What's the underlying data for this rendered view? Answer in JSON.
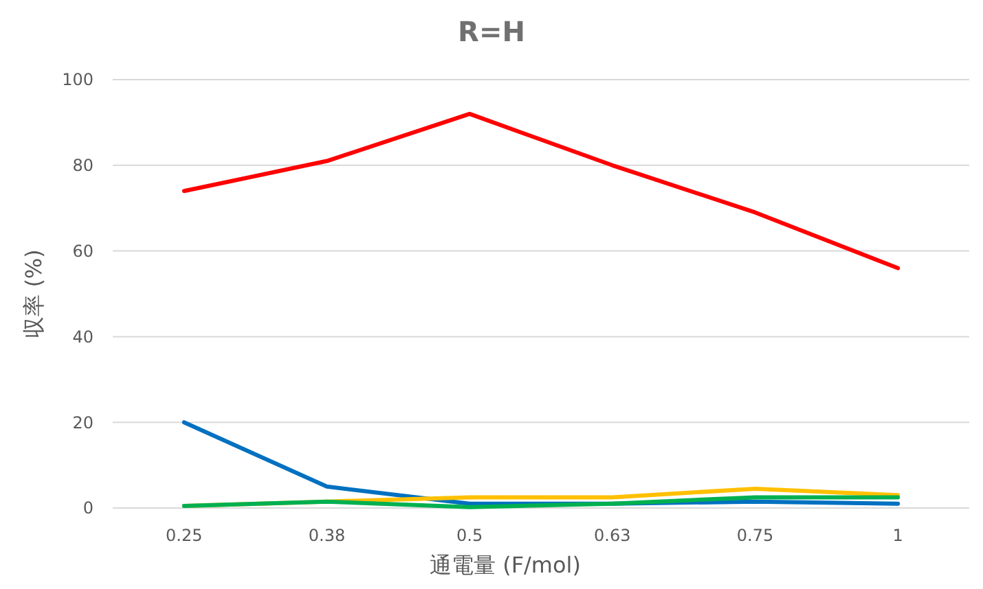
{
  "chart_data": {
    "type": "line",
    "title": "R=H",
    "xlabel": "通電量 (F/mol)",
    "ylabel": "収率 (%)",
    "categories": [
      "0.25",
      "0.38",
      "0.5",
      "0.63",
      "0.75",
      "1"
    ],
    "series": [
      {
        "color": "#ff0000",
        "values": [
          74,
          81,
          92,
          80,
          69,
          56
        ]
      },
      {
        "color": "#0070c0",
        "values": [
          20,
          5,
          1,
          1,
          1.5,
          1
        ]
      },
      {
        "color": "#ffc000",
        "values": [
          0.5,
          1.5,
          2.5,
          2.5,
          4.5,
          3
        ]
      },
      {
        "color": "#00b050",
        "values": [
          0.5,
          1.5,
          0.2,
          1,
          2.5,
          2.5
        ]
      }
    ],
    "ylim": [
      0,
      100
    ],
    "yticks": [
      0,
      20,
      40,
      60,
      80,
      100
    ],
    "grid": "y",
    "marker": "none",
    "line_style": "solid"
  }
}
